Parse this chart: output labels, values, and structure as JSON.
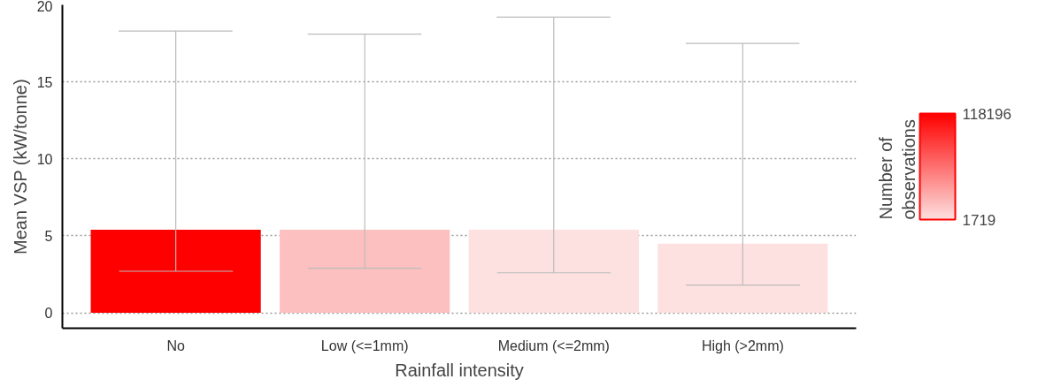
{
  "chart_data": {
    "type": "bar",
    "xlabel": "Rainfall intensity",
    "ylabel": "Mean VSP (kW/tonne)",
    "categories": [
      "No",
      "Low (<=1mm)",
      "Medium (<=2mm)",
      "High (>2mm)"
    ],
    "values": [
      5.4,
      5.4,
      5.4,
      4.5
    ],
    "colors": [
      "#ff0000",
      "#fdc0c0",
      "#fde0e0",
      "#fde0e0"
    ],
    "errors": [
      [
        2.7,
        18.3
      ],
      [
        2.9,
        18.1
      ],
      [
        2.6,
        19.2
      ],
      [
        1.8,
        17.5
      ]
    ],
    "ylim": [
      -1,
      20
    ],
    "yticks": [
      0,
      5,
      10,
      15,
      20
    ],
    "grid": "y",
    "legend_title": "Number of observations",
    "clim": [
      1719,
      118196
    ],
    "cticks": [
      1719,
      118196
    ]
  }
}
